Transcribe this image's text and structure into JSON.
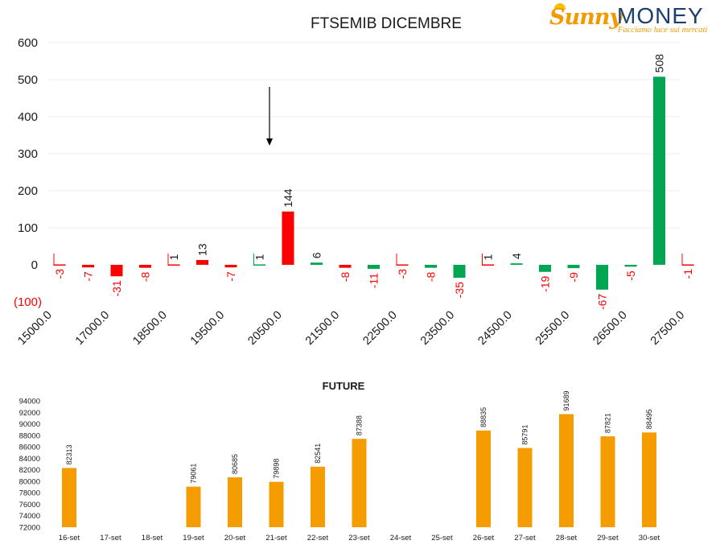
{
  "logo": {
    "brand_part1": "Sunny",
    "brand_part2": "MONEY",
    "tagline": "Facciamo luce sui mercati"
  },
  "colors": {
    "positive": "#00a651",
    "negative": "#ff0000",
    "future_bar": "#f59c00",
    "text": "#1a1a1a"
  },
  "chart_data": [
    {
      "type": "bar",
      "title": "FTSEMIB DICEMBRE",
      "ylim": [
        -100,
        600
      ],
      "yticks": [
        "600",
        "500",
        "400",
        "300",
        "200",
        "100",
        "0",
        "(100)"
      ],
      "xtick_labels": [
        "15000.0",
        "17000.0",
        "18500.0",
        "19500.0",
        "20500.0",
        "21500.0",
        "22500.0",
        "23500.0",
        "24500.0",
        "25500.0",
        "26500.0",
        "27500.0"
      ],
      "grid": true,
      "annotation": "downward arrow above the 20500.0 strike",
      "bars": [
        {
          "value": -3,
          "label": "-3",
          "color": "negative"
        },
        {
          "value": -7,
          "label": "-7",
          "color": "negative"
        },
        {
          "value": -31,
          "label": "-31",
          "color": "negative"
        },
        {
          "value": -8,
          "label": "-8",
          "color": "negative"
        },
        {
          "value": 1,
          "label": "1",
          "color": "negative"
        },
        {
          "value": 13,
          "label": "13",
          "color": "negative"
        },
        {
          "value": -7,
          "label": "-7",
          "color": "negative"
        },
        {
          "value": 1,
          "label": "1",
          "color": "positive"
        },
        {
          "value": 144,
          "label": "144",
          "color": "negative"
        },
        {
          "value": 6,
          "label": "6",
          "color": "positive"
        },
        {
          "value": -8,
          "label": "-8",
          "color": "negative"
        },
        {
          "value": -11,
          "label": "-11",
          "color": "positive"
        },
        {
          "value": -3,
          "label": "-3",
          "color": "negative"
        },
        {
          "value": -8,
          "label": "-8",
          "color": "positive"
        },
        {
          "value": -35,
          "label": "-35",
          "color": "positive"
        },
        {
          "value": 1,
          "label": "1",
          "color": "negative"
        },
        {
          "value": 4,
          "label": "4",
          "color": "positive"
        },
        {
          "value": -19,
          "label": "-19",
          "color": "positive"
        },
        {
          "value": -9,
          "label": "-9",
          "color": "positive"
        },
        {
          "value": -67,
          "label": "-67",
          "color": "positive"
        },
        {
          "value": -5,
          "label": "-5",
          "color": "positive"
        },
        {
          "value": 508,
          "label": "508",
          "color": "positive"
        },
        {
          "value": -1,
          "label": "-1",
          "color": "negative"
        }
      ]
    },
    {
      "type": "bar",
      "title": "FUTURE",
      "ylim": [
        72000,
        94000
      ],
      "yticks": [
        94000,
        92000,
        90000,
        88000,
        86000,
        84000,
        82000,
        80000,
        78000,
        76000,
        74000,
        72000
      ],
      "categories": [
        "16-set",
        "17-set",
        "18-set",
        "19-set",
        "20-set",
        "21-set",
        "22-set",
        "23-set",
        "24-set",
        "25-set",
        "26-set",
        "27-set",
        "28-set",
        "29-set",
        "30-set"
      ],
      "values": [
        82313,
        null,
        null,
        79061,
        80685,
        79898,
        82541,
        87388,
        null,
        null,
        88835,
        85791,
        91689,
        87821,
        88495
      ],
      "grid": false
    }
  ]
}
